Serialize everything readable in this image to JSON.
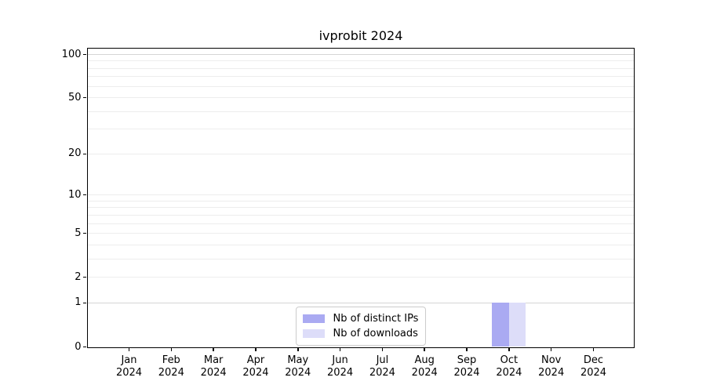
{
  "title": "ivprobit 2024",
  "chart_data": {
    "type": "bar",
    "title": "ivprobit 2024",
    "categories": [
      "Jan",
      "Feb",
      "Mar",
      "Apr",
      "May",
      "Jun",
      "Jul",
      "Aug",
      "Sep",
      "Oct",
      "Nov",
      "Dec"
    ],
    "year": "2024",
    "series": [
      {
        "name": "Nb of distinct IPs",
        "color": "#aaaaf2",
        "values": [
          0,
          0,
          0,
          0,
          0,
          0,
          0,
          0,
          0,
          1,
          0,
          0
        ]
      },
      {
        "name": "Nb of downloads",
        "color": "#ddddf9",
        "values": [
          0,
          0,
          0,
          0,
          0,
          0,
          0,
          0,
          0,
          1,
          0,
          0
        ]
      }
    ],
    "y_ticks": [
      0,
      1,
      2,
      5,
      10,
      20,
      50,
      100
    ],
    "y_scale": "log10(1+x)",
    "ylim": [
      0,
      100
    ],
    "gridline_values": [
      1,
      2,
      3,
      4,
      5,
      6,
      7,
      8,
      9,
      10,
      20,
      30,
      40,
      50,
      60,
      70,
      80,
      90,
      100
    ],
    "gridline_emphasized": [
      1,
      100
    ],
    "legend_position": "bottom-center",
    "colors": {
      "spine": "#000000",
      "grid_minor": "#ededed",
      "grid_major": "#d5d5d5",
      "background": "#ffffff"
    }
  }
}
